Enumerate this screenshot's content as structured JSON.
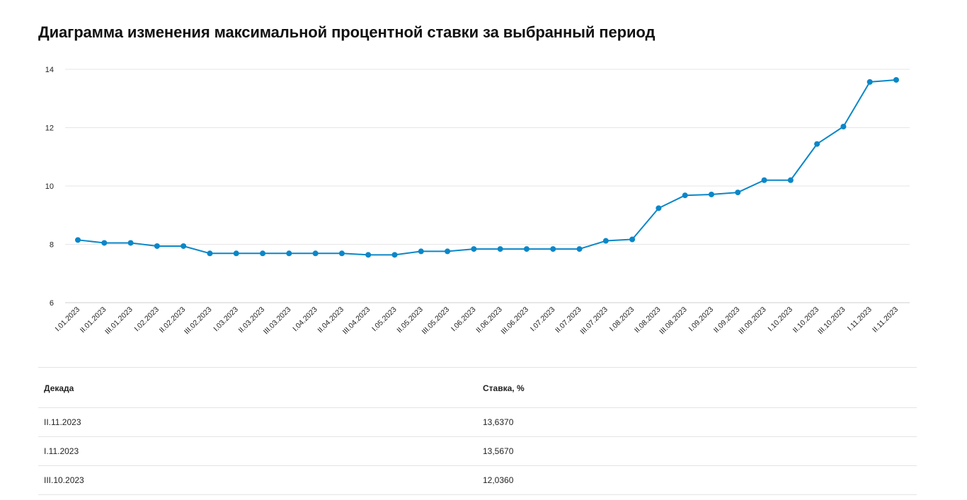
{
  "title": "Диаграмма изменения максимальной процентной ставки за выбранный период",
  "chart_data": {
    "type": "line",
    "title": "Диаграмма изменения максимальной процентной ставки за выбранный период",
    "xlabel": "",
    "ylabel": "",
    "ylim": [
      6,
      14
    ],
    "yticks": [
      6,
      8,
      10,
      12,
      14
    ],
    "grid": true,
    "line_color": "#0a87c8",
    "categories": [
      "I.01.2023",
      "II.01.2023",
      "III.01.2023",
      "I.02.2023",
      "II.02.2023",
      "III.02.2023",
      "I.03.2023",
      "II.03.2023",
      "III.03.2023",
      "I.04.2023",
      "II.04.2023",
      "III.04.2023",
      "I.05.2023",
      "II.05.2023",
      "III.05.2023",
      "I.06.2023",
      "II.06.2023",
      "III.06.2023",
      "I.07.2023",
      "II.07.2023",
      "III.07.2023",
      "I.08.2023",
      "II.08.2023",
      "III.08.2023",
      "I.09.2023",
      "II.09.2023",
      "III.09.2023",
      "I.10.2023",
      "II.10.2023",
      "III.10.2023",
      "I.11.2023",
      "II.11.2023"
    ],
    "series": [
      {
        "values": [
          8.15,
          8.05,
          8.05,
          7.94,
          7.94,
          7.69,
          7.69,
          7.69,
          7.69,
          7.69,
          7.69,
          7.64,
          7.64,
          7.76,
          7.76,
          7.84,
          7.84,
          7.84,
          7.84,
          7.84,
          8.12,
          8.17,
          9.24,
          9.68,
          9.71,
          9.78,
          10.2,
          10.2,
          11.44,
          12.036,
          13.567,
          13.637
        ]
      }
    ]
  },
  "table": {
    "headers": [
      "Декада",
      "Ставка, %"
    ],
    "rows": [
      [
        "II.11.2023",
        "13,6370"
      ],
      [
        "I.11.2023",
        "13,5670"
      ],
      [
        "III.10.2023",
        "12,0360"
      ]
    ]
  }
}
